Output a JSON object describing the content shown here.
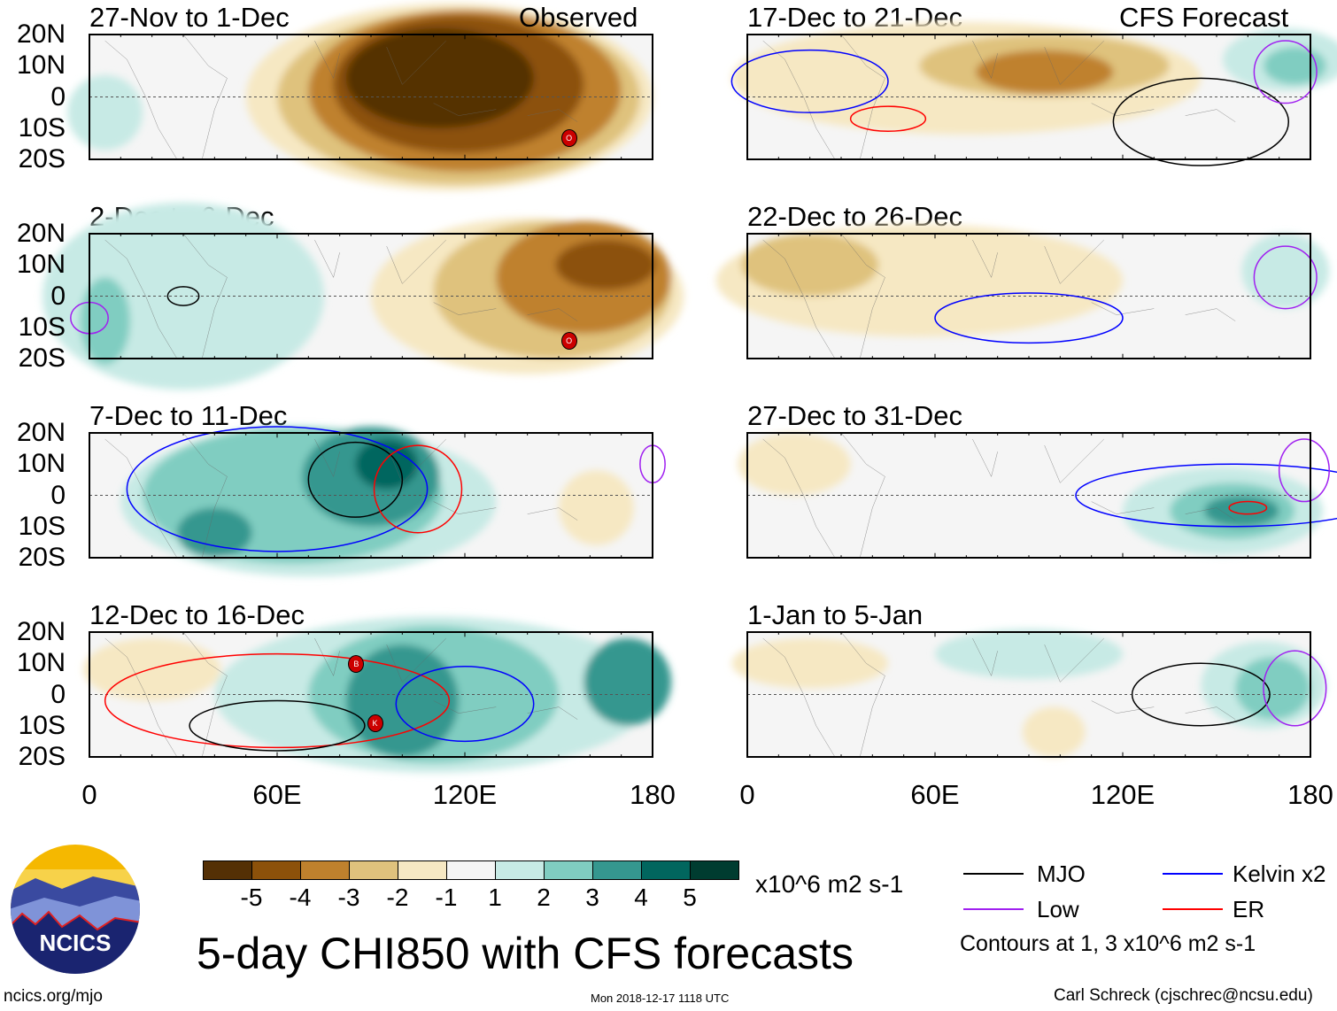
{
  "header": {
    "observed_label": "Observed",
    "forecast_label": "CFS Forecast"
  },
  "lat_ticks": [
    "20N",
    "10N",
    "0",
    "10S",
    "20S"
  ],
  "lon_ticks": [
    "0",
    "60E",
    "120E",
    "180"
  ],
  "colors": {
    "levels": [
      "#543005",
      "#8c510a",
      "#bf812d",
      "#dfc27d",
      "#f6e8c3",
      "#f5f5f5",
      "#c7eae5",
      "#80cdc1",
      "#35978f",
      "#01665e",
      "#003c30"
    ],
    "mjo": "#000000",
    "kelvin": "#0000ff",
    "low": "#a020f0",
    "er": "#ff0000"
  },
  "panels": [
    {
      "title": "27-Dec to 31-Dec",
      "dummy": true
    }
  ],
  "left_panels": [
    {
      "title": "27-Nov to 1-Dec",
      "blobs": [
        [
          -1,
          115,
          0,
          65,
          30
        ],
        [
          -2,
          118,
          0,
          58,
          28
        ],
        [
          -3,
          120,
          2,
          50,
          26
        ],
        [
          -4,
          118,
          4,
          40,
          22
        ],
        [
          -5,
          112,
          6,
          30,
          16
        ],
        [
          1,
          5,
          -5,
          12,
          12
        ]
      ],
      "contours": [],
      "storms": [
        [
          153,
          -13,
          "O"
        ]
      ]
    },
    {
      "title": "2-Dec to 6-Dec",
      "blobs": [
        [
          1,
          30,
          0,
          45,
          30
        ],
        [
          2,
          5,
          -8,
          8,
          14
        ],
        [
          -1,
          140,
          0,
          50,
          25
        ],
        [
          -2,
          148,
          2,
          38,
          22
        ],
        [
          -3,
          158,
          6,
          28,
          18
        ],
        [
          -4,
          165,
          10,
          16,
          8
        ]
      ],
      "contours": [
        [
          "mjo",
          30,
          0,
          5,
          3
        ],
        [
          "low",
          0,
          -7,
          6,
          5
        ]
      ],
      "storms": [
        [
          153,
          -14,
          "O"
        ]
      ]
    },
    {
      "title": "7-Dec to 11-Dec",
      "blobs": [
        [
          1,
          70,
          -2,
          60,
          24
        ],
        [
          2,
          65,
          0,
          48,
          22
        ],
        [
          3,
          90,
          6,
          22,
          16
        ],
        [
          3,
          40,
          -12,
          12,
          8
        ],
        [
          4,
          95,
          10,
          10,
          8
        ],
        [
          -1,
          162,
          -4,
          12,
          12
        ]
      ],
      "contours": [
        [
          "mjo",
          85,
          5,
          15,
          12
        ],
        [
          "kelvin",
          60,
          2,
          48,
          20
        ],
        [
          "er",
          105,
          2,
          14,
          14
        ],
        [
          "low",
          180,
          10,
          4,
          6
        ]
      ],
      "storms": []
    },
    {
      "title": "12-Dec to 16-Dec",
      "blobs": [
        [
          1,
          110,
          0,
          70,
          25
        ],
        [
          2,
          110,
          0,
          40,
          22
        ],
        [
          3,
          100,
          -2,
          18,
          18
        ],
        [
          3,
          172,
          4,
          14,
          14
        ],
        [
          -1,
          20,
          8,
          22,
          10
        ]
      ],
      "contours": [
        [
          "er",
          60,
          -2,
          55,
          15
        ],
        [
          "kelvin",
          120,
          -3,
          22,
          12
        ],
        [
          "mjo",
          60,
          -10,
          28,
          8
        ]
      ],
      "storms": [
        [
          85,
          10,
          "B"
        ],
        [
          91,
          -9,
          "K"
        ]
      ]
    }
  ],
  "right_panels": [
    {
      "title": "17-Dec to 21-Dec",
      "blobs": [
        [
          -1,
          70,
          6,
          75,
          18
        ],
        [
          -2,
          95,
          10,
          40,
          10
        ],
        [
          -3,
          95,
          8,
          22,
          7
        ],
        [
          1,
          172,
          12,
          20,
          10
        ],
        [
          2,
          175,
          10,
          10,
          6
        ]
      ],
      "contours": [
        [
          "mjo",
          145,
          -8,
          28,
          14
        ],
        [
          "kelvin",
          20,
          5,
          25,
          10
        ],
        [
          "er",
          45,
          -7,
          12,
          4
        ],
        [
          "low",
          172,
          8,
          10,
          10
        ]
      ],
      "storms": []
    },
    {
      "title": "22-Dec to 26-Dec",
      "blobs": [
        [
          -1,
          55,
          5,
          65,
          18
        ],
        [
          -2,
          20,
          10,
          22,
          10
        ],
        [
          1,
          172,
          8,
          14,
          12
        ]
      ],
      "contours": [
        [
          "kelvin",
          90,
          -7,
          30,
          8
        ],
        [
          "low",
          172,
          6,
          10,
          10
        ]
      ],
      "storms": []
    },
    {
      "title": "27-Dec to 31-Dec",
      "blobs": [
        [
          -1,
          15,
          10,
          18,
          10
        ],
        [
          1,
          152,
          -5,
          32,
          14
        ],
        [
          2,
          155,
          -5,
          20,
          9
        ],
        [
          3,
          158,
          -5,
          12,
          5
        ]
      ],
      "contours": [
        [
          "kelvin",
          155,
          0,
          50,
          10
        ],
        [
          "er",
          160,
          -4,
          6,
          2
        ],
        [
          "low",
          178,
          8,
          8,
          10
        ]
      ],
      "storms": []
    },
    {
      "title": "1-Jan to 5-Jan",
      "blobs": [
        [
          -1,
          20,
          10,
          25,
          8
        ],
        [
          -1,
          98,
          -12,
          10,
          8
        ],
        [
          1,
          90,
          13,
          30,
          8
        ],
        [
          1,
          165,
          3,
          20,
          14
        ],
        [
          2,
          168,
          2,
          12,
          10
        ]
      ],
      "contours": [
        [
          "mjo",
          145,
          0,
          22,
          10
        ],
        [
          "low",
          175,
          2,
          10,
          12
        ]
      ],
      "storms": []
    }
  ],
  "colorbar": {
    "labels": [
      "-5",
      "-4",
      "-3",
      "-2",
      "-1",
      "1",
      "2",
      "3",
      "4",
      "5"
    ],
    "units": "x10^6 m2 s-1"
  },
  "legend": {
    "mjo": "MJO",
    "kelvin": "Kelvin x2",
    "low": "Low",
    "er": "ER",
    "note": "Contours at 1, 3 x10^6 m2 s-1"
  },
  "footer": {
    "title": "5-day CHI850 with CFS forecasts",
    "logo_text": "NCICS",
    "url": "ncics.org/mjo",
    "timestamp": "Mon 2018-12-17 1118 UTC",
    "credit": "Carl Schreck (cjschrec@ncsu.edu)"
  }
}
